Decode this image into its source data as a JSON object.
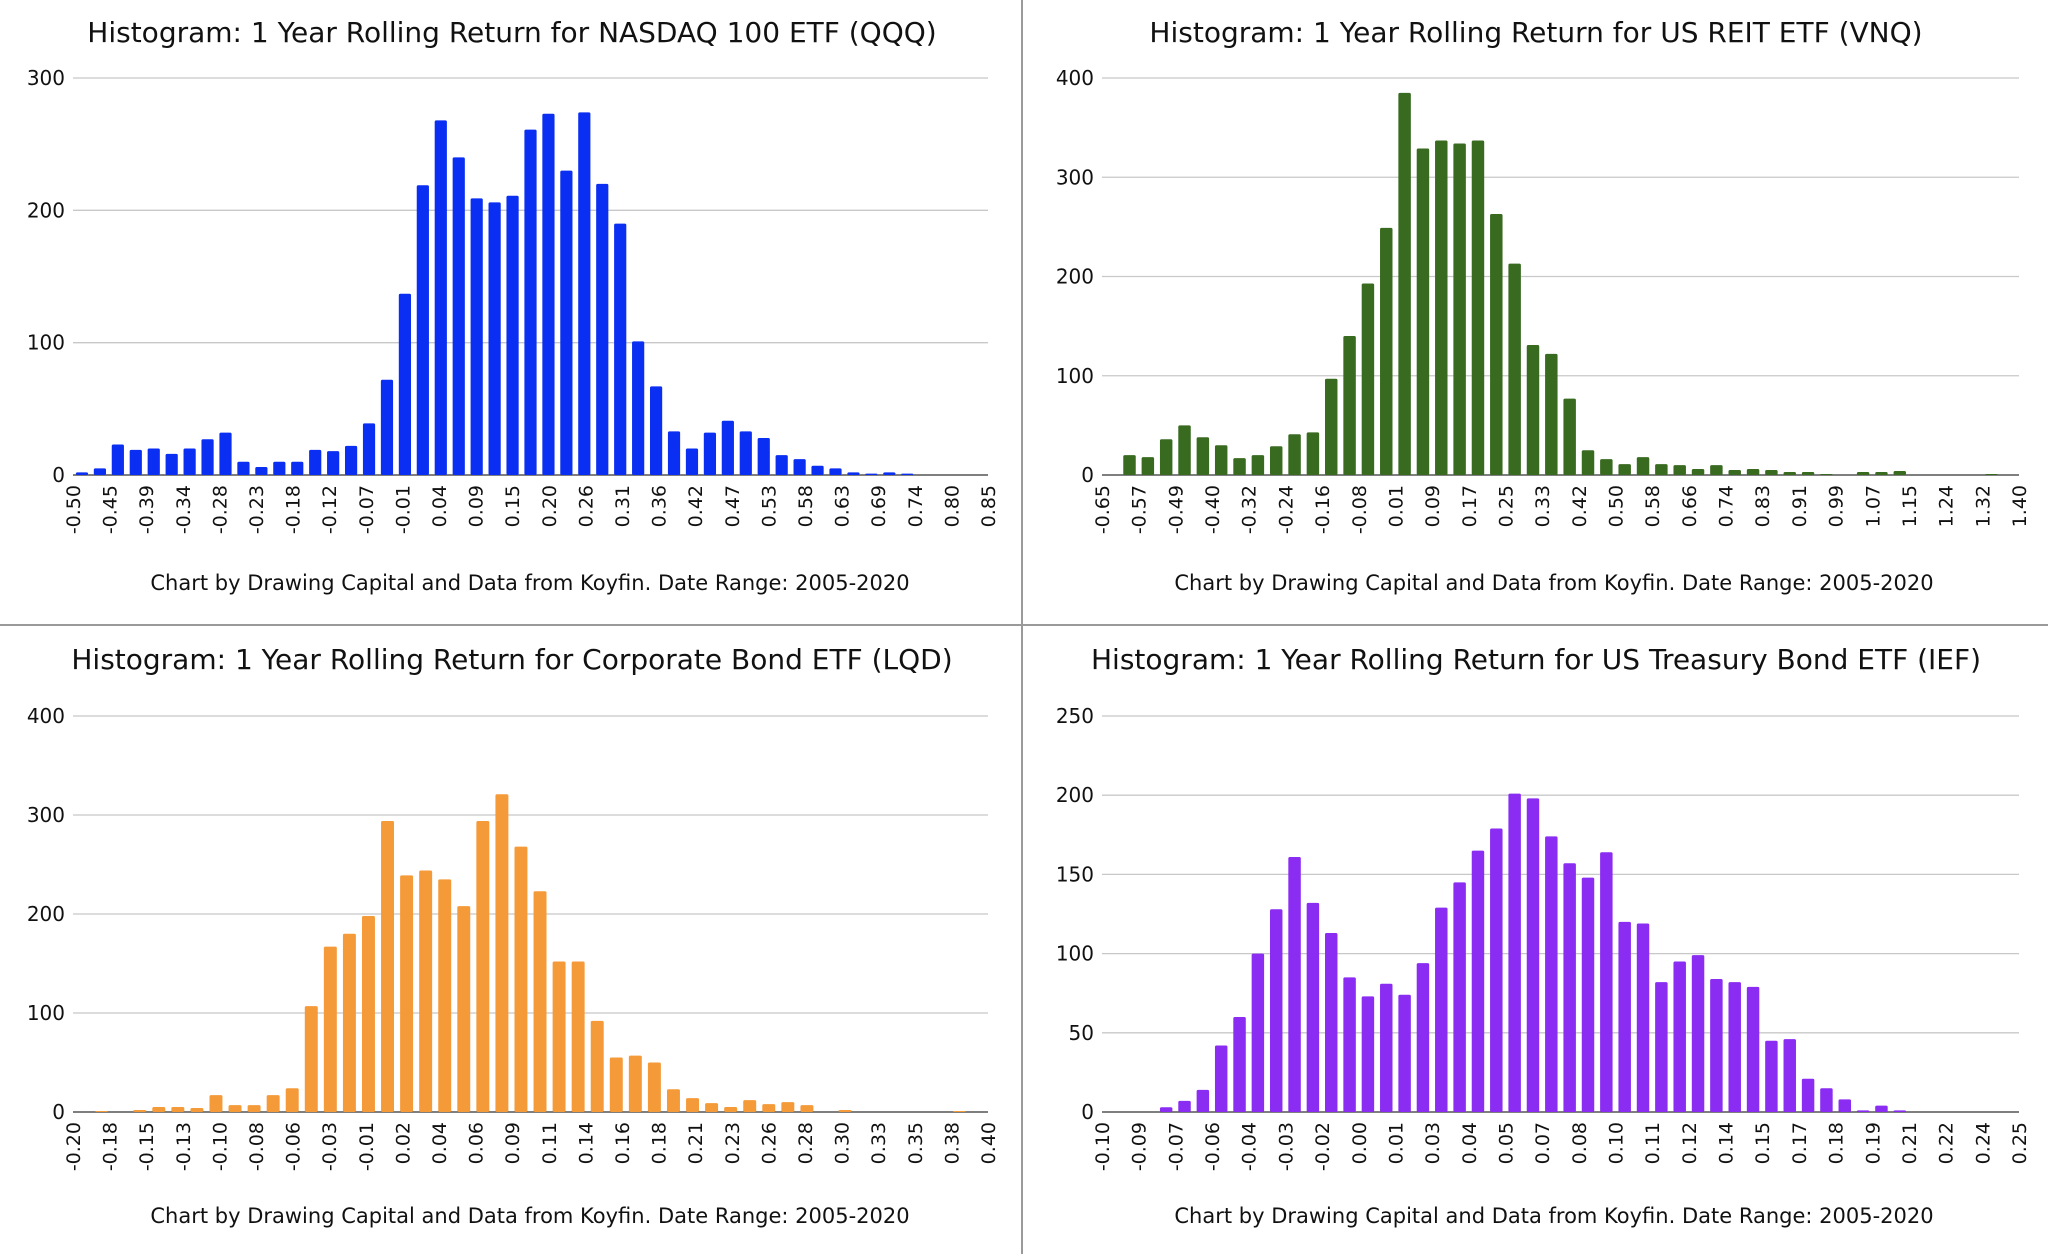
{
  "chart_data": [
    {
      "type": "bar",
      "title": "Histogram: 1 Year Rolling Return for NASDAQ 100 ETF (QQQ)",
      "footnote": "Chart by Drawing Capital and Data from Koyfin. Date Range: 2005-2020",
      "color": "#0a2ff2",
      "ylim": [
        0,
        300
      ],
      "yticks": [
        0,
        100,
        200,
        300
      ],
      "grid": true,
      "x_tick_labels": [
        "-0.50",
        "-0.45",
        "-0.39",
        "-0.34",
        "-0.28",
        "-0.23",
        "-0.18",
        "-0.12",
        "-0.07",
        "-0.01",
        "0.04",
        "0.09",
        "0.15",
        "0.20",
        "0.26",
        "0.31",
        "0.36",
        "0.42",
        "0.47",
        "0.53",
        "0.58",
        "0.63",
        "0.69",
        "0.74",
        "0.80",
        "0.85"
      ],
      "values": [
        2,
        5,
        23,
        19,
        20,
        16,
        20,
        27,
        32,
        10,
        6,
        10,
        10,
        19,
        18,
        22,
        39,
        72,
        137,
        219,
        268,
        240,
        209,
        206,
        211,
        261,
        273,
        230,
        274,
        220,
        190,
        101,
        67,
        33,
        20,
        32,
        41,
        33,
        28,
        15,
        12,
        7,
        5,
        2,
        1,
        2,
        1,
        0,
        0,
        0,
        0
      ]
    },
    {
      "type": "bar",
      "title": "Histogram: 1 Year Rolling Return for US REIT ETF (VNQ)",
      "footnote": "Chart by Drawing Capital and Data from Koyfin. Date Range: 2005-2020",
      "color": "#386a20",
      "ylim": [
        0,
        400
      ],
      "yticks": [
        0,
        100,
        200,
        300,
        400
      ],
      "grid": true,
      "x_tick_labels": [
        "-0.65",
        "-0.57",
        "-0.49",
        "-0.40",
        "-0.32",
        "-0.24",
        "-0.16",
        "-0.08",
        "0.01",
        "0.09",
        "0.17",
        "0.25",
        "0.33",
        "0.42",
        "0.50",
        "0.58",
        "0.66",
        "0.74",
        "0.83",
        "0.91",
        "0.99",
        "1.07",
        "1.15",
        "1.24",
        "1.32",
        "1.40"
      ],
      "values": [
        0,
        20,
        18,
        36,
        50,
        38,
        30,
        17,
        20,
        29,
        41,
        43,
        97,
        140,
        193,
        249,
        385,
        329,
        337,
        334,
        337,
        263,
        213,
        131,
        122,
        77,
        25,
        16,
        11,
        18,
        11,
        10,
        6,
        10,
        5,
        6,
        5,
        3,
        3,
        1,
        0,
        3,
        3,
        4,
        0,
        0,
        0,
        0,
        1,
        0
      ]
    },
    {
      "type": "bar",
      "title": "Histogram: 1 Year Rolling Return for Corporate Bond ETF (LQD)",
      "footnote": "Chart by Drawing Capital and Data from Koyfin. Date Range: 2005-2020",
      "color": "#f59a38",
      "ylim": [
        0,
        400
      ],
      "yticks": [
        0,
        100,
        200,
        300,
        400
      ],
      "grid": true,
      "x_tick_labels": [
        "-0.20",
        "-0.18",
        "-0.15",
        "-0.13",
        "-0.10",
        "-0.08",
        "-0.06",
        "-0.03",
        "-0.01",
        "0.02",
        "0.04",
        "0.06",
        "0.09",
        "0.11",
        "0.14",
        "0.16",
        "0.18",
        "0.21",
        "0.23",
        "0.26",
        "0.28",
        "0.30",
        "0.33",
        "0.35",
        "0.38",
        "0.40"
      ],
      "values": [
        0,
        1,
        0,
        2,
        5,
        5,
        4,
        17,
        7,
        7,
        17,
        24,
        107,
        167,
        180,
        198,
        294,
        239,
        244,
        235,
        208,
        294,
        321,
        268,
        223,
        152,
        152,
        92,
        55,
        57,
        50,
        23,
        14,
        9,
        5,
        12,
        8,
        10,
        7,
        0,
        2,
        0,
        0,
        0,
        0,
        0,
        1,
        0
      ]
    },
    {
      "type": "bar",
      "title": "Histogram: 1 Year Rolling Return for US Treasury Bond ETF (IEF)",
      "footnote": "Chart by Drawing Capital and Data from Koyfin. Date Range: 2005-2020",
      "color": "#8a2cf2",
      "ylim": [
        0,
        250
      ],
      "yticks": [
        0,
        50,
        100,
        150,
        200,
        250
      ],
      "grid": true,
      "x_tick_labels": [
        "-0.10",
        "-0.09",
        "-0.07",
        "-0.06",
        "-0.04",
        "-0.03",
        "-0.02",
        "0.00",
        "0.01",
        "0.03",
        "0.04",
        "0.05",
        "0.07",
        "0.08",
        "0.10",
        "0.11",
        "0.12",
        "0.14",
        "0.15",
        "0.17",
        "0.18",
        "0.19",
        "0.21",
        "0.22",
        "0.24",
        "0.25"
      ],
      "values": [
        0,
        0,
        0,
        3,
        7,
        14,
        42,
        60,
        100,
        128,
        161,
        132,
        113,
        85,
        73,
        81,
        74,
        94,
        129,
        145,
        165,
        179,
        201,
        198,
        174,
        157,
        148,
        164,
        120,
        119,
        82,
        95,
        99,
        84,
        82,
        79,
        45,
        46,
        21,
        15,
        8,
        1,
        4,
        1,
        0,
        0,
        0,
        0,
        0,
        0
      ]
    }
  ]
}
